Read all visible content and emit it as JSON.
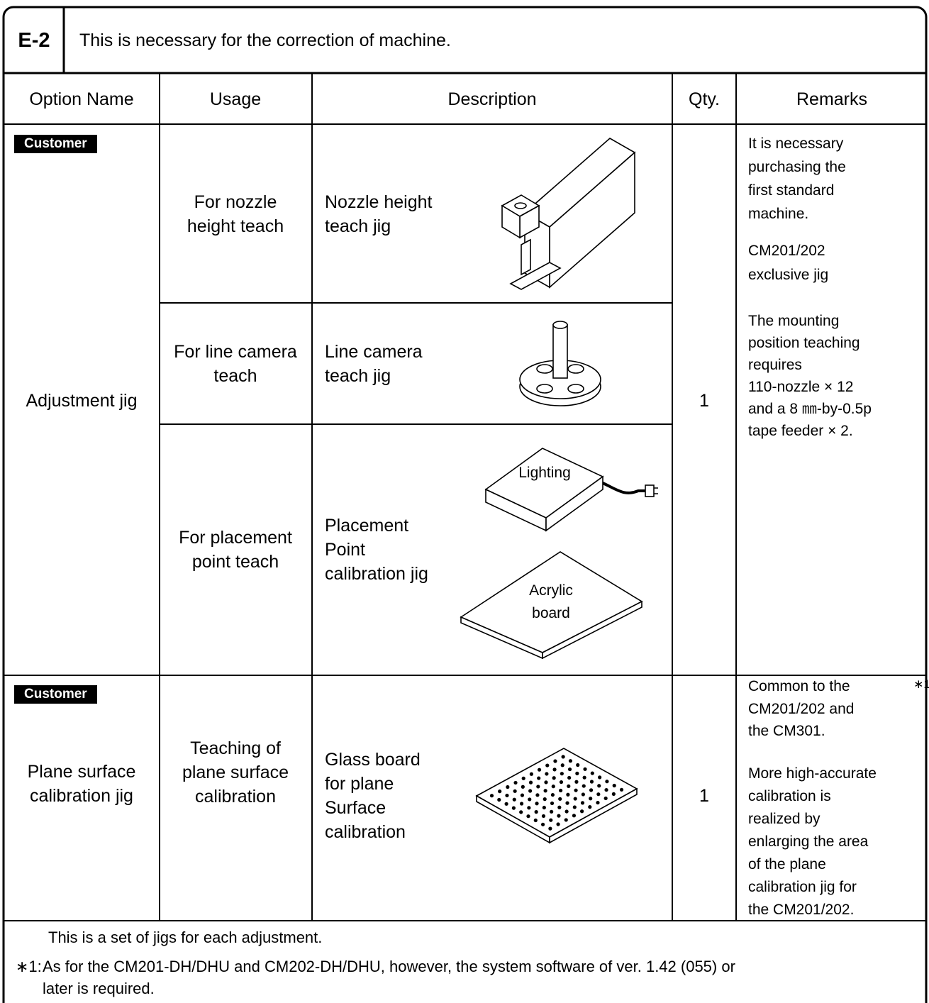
{
  "header": {
    "code": "E-2",
    "title": "This is necessary for the correction of machine."
  },
  "table": {
    "columns": [
      "Option Name",
      "Usage",
      "Description",
      "Qty.",
      "Remarks"
    ],
    "groups": [
      {
        "badge": "Customer",
        "option_name": [
          "Adjustment jig"
        ],
        "qty": 1,
        "remarks": [
          [
            "It is necessary",
            "purchasing the",
            "first standard",
            "machine."
          ],
          [
            "CM201/202",
            "exclusive jig"
          ],
          [
            "The mounting",
            "position teaching",
            "requires",
            "110-nozzle × 12",
            "and a 8 ㎜-by-0.5p",
            "tape feeder × 2."
          ]
        ],
        "items": [
          {
            "usage": [
              "For nozzle",
              "height teach"
            ],
            "description": [
              "Nozzle height",
              "teach jig"
            ]
          },
          {
            "usage": [
              "For line camera",
              "teach"
            ],
            "description": [
              "Line camera",
              "teach jig"
            ]
          },
          {
            "usage": [
              "For placement",
              "point teach"
            ],
            "description": [
              "Placement",
              "Point",
              "calibration jig"
            ],
            "figure_labels": [
              "Lighting",
              "Acrylic",
              "board"
            ]
          }
        ]
      },
      {
        "badge": "Customer",
        "option_name": [
          "Plane surface",
          "calibration jig"
        ],
        "qty": 1,
        "remarks_mark": "∗1",
        "remarks": [
          [
            "Common to the",
            "CM201/202 and",
            "the CM301."
          ],
          [
            "More high-accurate",
            "calibration is",
            "realized by",
            "enlarging the area",
            "of the plane",
            "calibration jig for",
            "the CM201/202."
          ]
        ],
        "items": [
          {
            "usage": [
              "Teaching of",
              "plane surface",
              "calibration"
            ],
            "description": [
              "Glass board",
              "for plane",
              "Surface",
              "calibration"
            ]
          }
        ]
      }
    ]
  },
  "footer": {
    "note": "This is a set of jigs for each adjustment.",
    "footnote_mark": "∗1:",
    "footnote": [
      "As for the CM201-DH/DHU and CM202-DH/DHU, however, the system software of ver. 1.42 (055) or",
      "later is required."
    ]
  }
}
